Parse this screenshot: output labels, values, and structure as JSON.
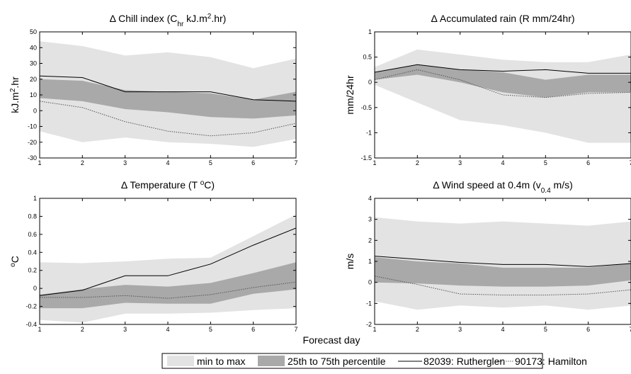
{
  "x_axis_label": "Forecast day",
  "colors": {
    "range_fill": "#e3e3e3",
    "iqr_fill": "#a9a9a9",
    "rutherglen_line": "#000000",
    "hamilton_line": "#555555"
  },
  "legend": {
    "items": [
      {
        "key": "range",
        "label": "min to max"
      },
      {
        "key": "iqr",
        "label": "25th to 75th percentile"
      },
      {
        "key": "rutherglen",
        "label": "82039: Rutherglen"
      },
      {
        "key": "hamilton",
        "label": "90173: Hamilton"
      }
    ]
  },
  "chart_data": [
    {
      "type": "area",
      "title": "Δ Chill index (C",
      "title_sub": "hr",
      "title_rest": " kJ.m",
      "title_sup": "2",
      "title_end": ".hr)",
      "ylabel": "kJ.m",
      "ylabel_sup": "2",
      "ylabel_end": ".hr",
      "x": [
        1,
        2,
        3,
        4,
        5,
        6,
        7
      ],
      "xticks": [
        "1",
        "2",
        "3",
        "4",
        "5",
        "6",
        "7"
      ],
      "ylim": [
        -30,
        50
      ],
      "yticks": [
        "-30",
        "-20",
        "-10",
        "0",
        "10",
        "20",
        "30",
        "40",
        "50"
      ],
      "yticks_values": [
        -30,
        -20,
        -10,
        0,
        10,
        20,
        30,
        40,
        50
      ],
      "series": {
        "min": [
          -13,
          -20,
          -17,
          -20,
          -21,
          -23,
          -18
        ],
        "max": [
          44,
          41,
          35,
          37,
          34,
          27,
          33
        ],
        "p25": [
          8,
          6,
          1,
          -1,
          -4,
          -5,
          -3
        ],
        "p75": [
          20,
          19,
          13,
          12,
          11,
          7,
          12
        ],
        "rutherglen": [
          22,
          21,
          12,
          12,
          12,
          7,
          6
        ],
        "hamilton": [
          6,
          2,
          -7,
          -13,
          -16,
          -14,
          -8
        ]
      }
    },
    {
      "type": "area",
      "title": "Δ Accumulated rain (R mm/24hr)",
      "ylabel": "mm/24hr",
      "x": [
        1,
        2,
        3,
        4,
        5,
        6,
        7
      ],
      "xticks": [
        "1",
        "2",
        "3",
        "4",
        "5",
        "6",
        "7"
      ],
      "ylim": [
        -1.5,
        1
      ],
      "yticks": [
        "-1.5",
        "-1",
        "-0.5",
        "0",
        "0.5",
        "1"
      ],
      "yticks_values": [
        -1.5,
        -1,
        -0.5,
        0,
        0.5,
        1
      ],
      "series": {
        "min": [
          -0.05,
          -0.4,
          -0.75,
          -0.85,
          -1.0,
          -1.2,
          -1.2
        ],
        "max": [
          0.3,
          0.65,
          0.55,
          0.45,
          0.4,
          0.4,
          0.55
        ],
        "p25": [
          0.05,
          0.15,
          0.0,
          -0.2,
          -0.3,
          -0.2,
          -0.2
        ],
        "p75": [
          0.2,
          0.35,
          0.25,
          0.2,
          0.05,
          0.15,
          0.15
        ],
        "rutherglen": [
          0.2,
          0.35,
          0.25,
          0.22,
          0.25,
          0.18,
          0.18
        ],
        "hamilton": [
          0.05,
          0.25,
          0.05,
          -0.25,
          -0.3,
          -0.22,
          -0.2
        ]
      }
    },
    {
      "type": "area",
      "title": "Δ Temperature (T ",
      "title_sup": "o",
      "title_end": "C)",
      "ylabel": "",
      "ylabel_sup": "o",
      "ylabel_end": "C",
      "x": [
        1,
        2,
        3,
        4,
        5,
        6,
        7
      ],
      "xticks": [
        "1",
        "2",
        "3",
        "4",
        "5",
        "6",
        "7"
      ],
      "ylim": [
        -0.4,
        1
      ],
      "yticks": [
        "-0.4",
        "-0.2",
        "0",
        "0.2",
        "0.4",
        "0.6",
        "0.8",
        "1"
      ],
      "yticks_values": [
        -0.4,
        -0.2,
        0,
        0.2,
        0.4,
        0.6,
        0.8,
        1
      ],
      "series": {
        "min": [
          -0.35,
          -0.38,
          -0.28,
          -0.28,
          -0.27,
          -0.24,
          -0.22
        ],
        "max": [
          0.29,
          0.28,
          0.3,
          0.33,
          0.34,
          0.58,
          0.82
        ],
        "p25": [
          -0.22,
          -0.22,
          -0.16,
          -0.17,
          -0.17,
          -0.06,
          -0.01
        ],
        "p75": [
          -0.07,
          -0.01,
          0.04,
          0.02,
          0.06,
          0.17,
          0.29
        ],
        "rutherglen": [
          -0.08,
          -0.02,
          0.14,
          0.14,
          0.27,
          0.48,
          0.67
        ],
        "hamilton": [
          -0.1,
          -0.1,
          -0.08,
          -0.11,
          -0.07,
          0.01,
          0.07
        ]
      }
    },
    {
      "type": "area",
      "title": "Δ Wind speed at 0.4m (v",
      "title_sub": "0.4",
      "title_end": " m/s)",
      "ylabel": "m/s",
      "x": [
        1,
        2,
        3,
        4,
        5,
        6,
        7
      ],
      "xticks": [
        "1",
        "2",
        "3",
        "4",
        "5",
        "6",
        "7"
      ],
      "ylim": [
        -2,
        4
      ],
      "yticks": [
        "-2",
        "-1",
        "0",
        "1",
        "2",
        "3",
        "4"
      ],
      "yticks_values": [
        -2,
        -1,
        0,
        1,
        2,
        3,
        4
      ],
      "series": {
        "min": [
          -0.9,
          -1.3,
          -1.1,
          -1.2,
          -1.1,
          -1.3,
          -1.1
        ],
        "max": [
          3.1,
          2.9,
          2.8,
          2.9,
          2.8,
          2.7,
          2.9
        ],
        "p25": [
          0.0,
          -0.05,
          -0.15,
          -0.2,
          -0.2,
          -0.15,
          0.1
        ],
        "p75": [
          1.2,
          1.0,
          0.9,
          0.7,
          0.7,
          0.7,
          0.9
        ],
        "rutherglen": [
          1.25,
          1.1,
          0.95,
          0.85,
          0.85,
          0.75,
          0.9
        ],
        "hamilton": [
          0.3,
          -0.1,
          -0.55,
          -0.6,
          -0.6,
          -0.55,
          -0.35
        ]
      }
    }
  ]
}
